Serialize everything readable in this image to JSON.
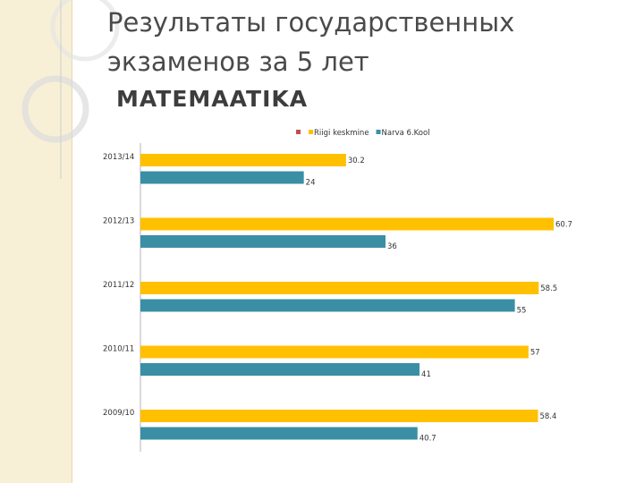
{
  "slide": {
    "title_line1": "Результаты государственных",
    "title_line2": "экзаменов за 5 лет",
    "subtitle": "MATEMAATIKA"
  },
  "colors": {
    "background": "#ffffff",
    "sidebar": "#f7f0d6",
    "series_1": "#ffc000",
    "series_2": "#3a8fa4",
    "legend_marker_unnamed": "#c0504d"
  },
  "chart_data": {
    "type": "bar",
    "orientation": "horizontal",
    "categories": [
      "2013/14",
      "2012/13",
      "2011/12",
      "2010/11",
      "2009/10"
    ],
    "series": [
      {
        "name": "Riigi keskmine",
        "values": [
          30.2,
          60.7,
          58.5,
          57,
          58.4
        ]
      },
      {
        "name": "Narva 6.Kool",
        "values": [
          24,
          36,
          55,
          41,
          40.7
        ]
      }
    ],
    "value_labels": [
      [
        "30.2",
        "60.7",
        "58.5",
        "57",
        "58.4"
      ],
      [
        "24",
        "36",
        "55",
        "41",
        "40.7"
      ]
    ],
    "xlim": [
      0,
      62
    ],
    "legend_position": "top",
    "grid": false
  }
}
